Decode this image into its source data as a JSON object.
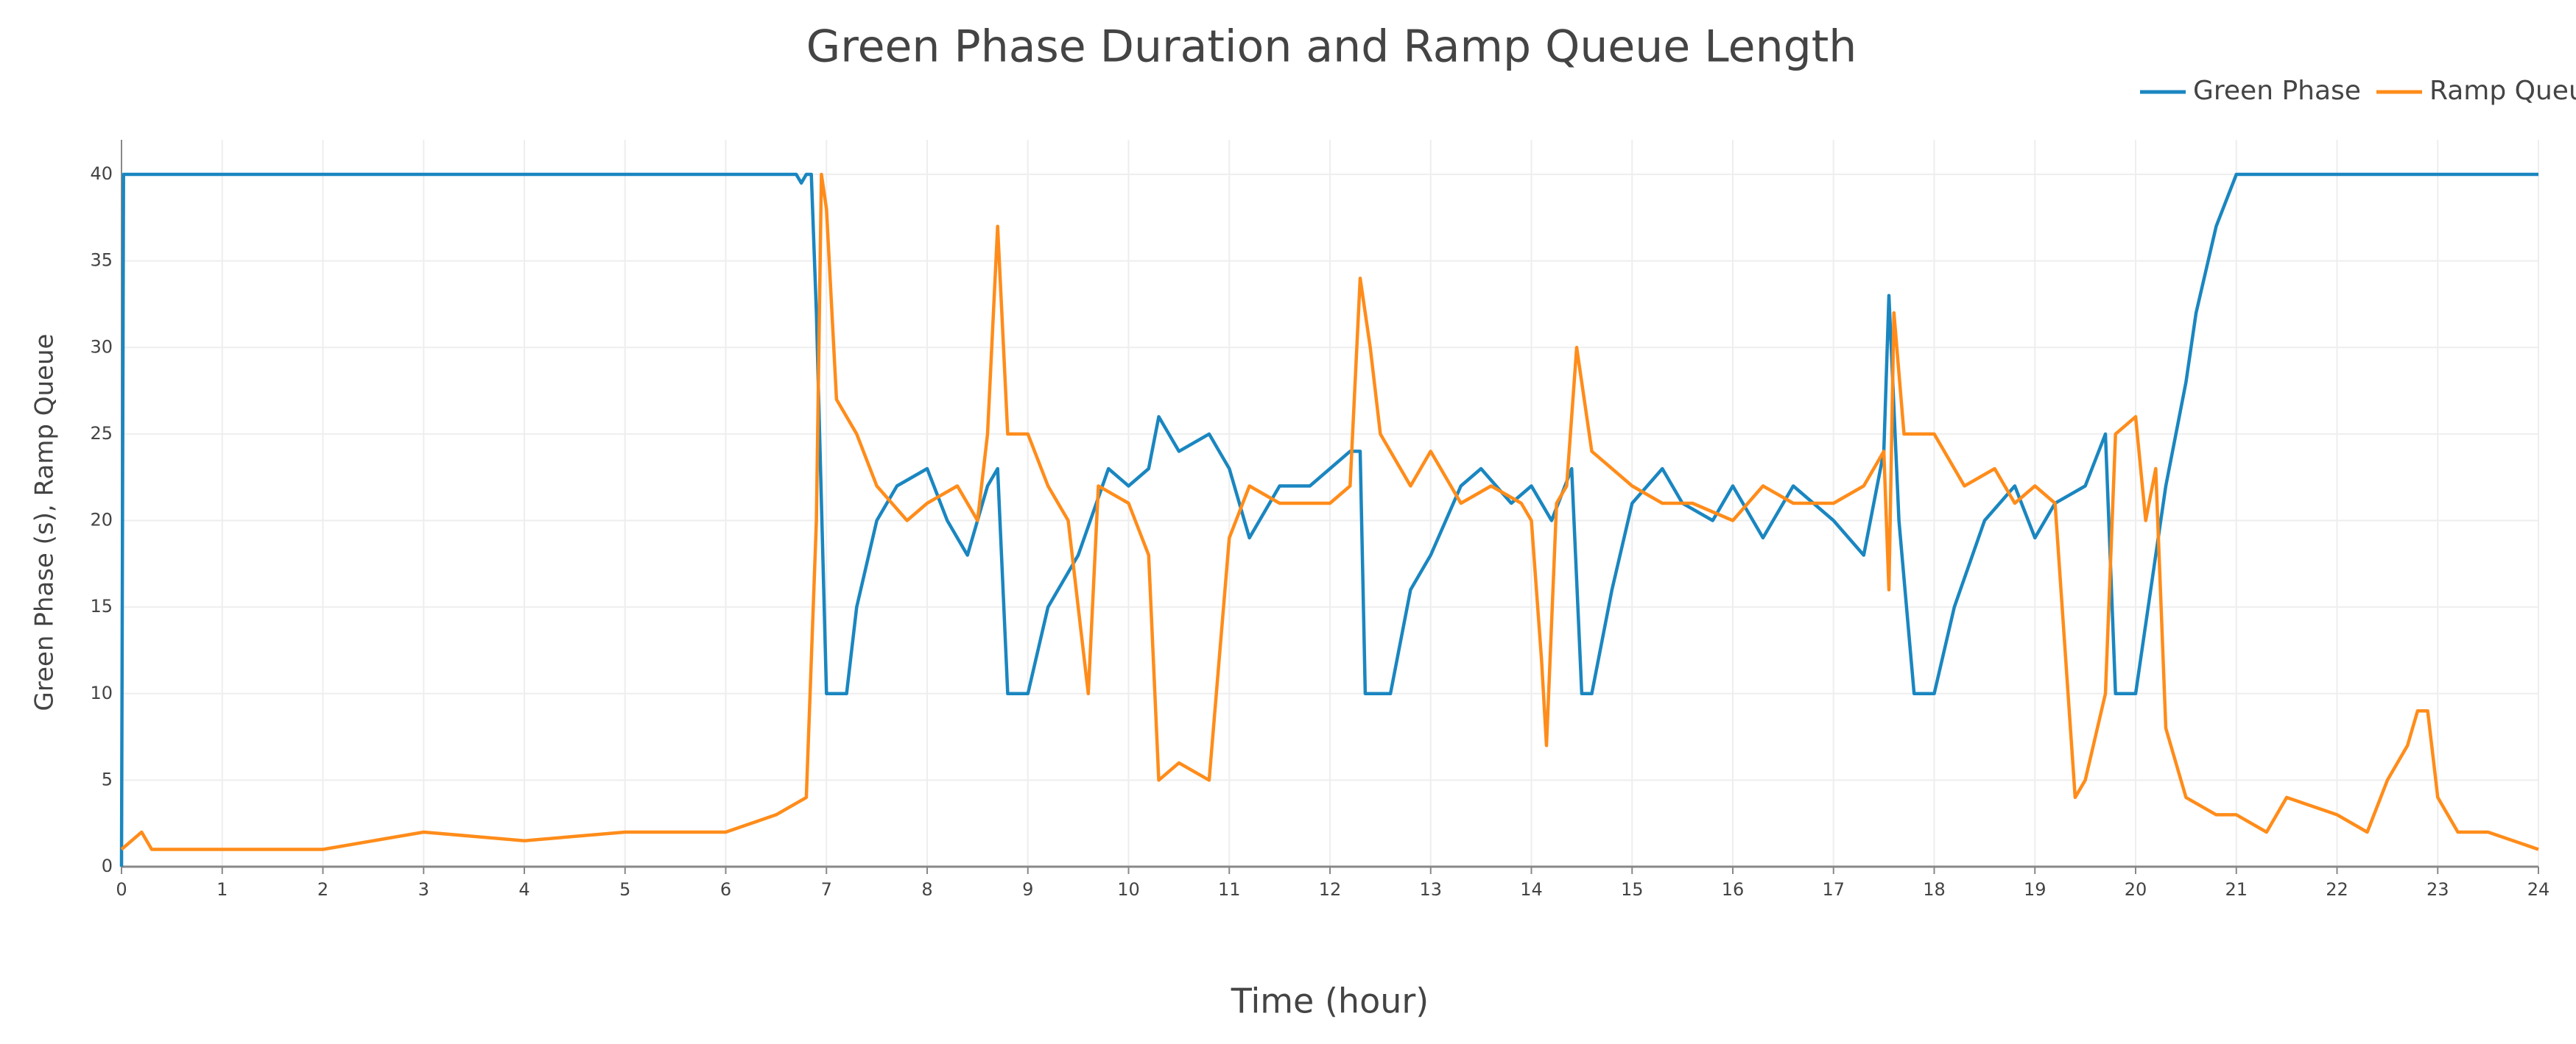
{
  "chart_data": {
    "type": "line",
    "title": "Green Phase Duration and Ramp Queue Length",
    "x_label": "Time (hour)",
    "y_label": "Green Phase (s), Ramp Queue",
    "xlim": [
      0,
      24
    ],
    "ylim": [
      0,
      42
    ],
    "xticks": [
      0,
      1,
      2,
      3,
      4,
      5,
      6,
      7,
      8,
      9,
      10,
      11,
      12,
      13,
      14,
      15,
      16,
      17,
      18,
      19,
      20,
      21,
      22,
      23,
      24
    ],
    "yticks": [
      0,
      5,
      10,
      15,
      20,
      25,
      30,
      35,
      40
    ],
    "grid": true,
    "legend": "top-right",
    "series": [
      {
        "name": "Green Phase",
        "color": "#1a86c0",
        "x": [
          0,
          0.02,
          6.7,
          6.75,
          6.8,
          6.85,
          6.9,
          7.0,
          7.2,
          7.3,
          7.5,
          7.7,
          8.0,
          8.2,
          8.4,
          8.6,
          8.7,
          8.8,
          9.0,
          9.2,
          9.5,
          9.8,
          10.0,
          10.2,
          10.3,
          10.5,
          10.8,
          11.0,
          11.2,
          11.5,
          11.8,
          12.0,
          12.2,
          12.3,
          12.35,
          12.6,
          12.8,
          13.0,
          13.3,
          13.5,
          13.8,
          14.0,
          14.2,
          14.4,
          14.5,
          14.6,
          14.8,
          15.0,
          15.3,
          15.5,
          15.8,
          16.0,
          16.3,
          16.6,
          17.0,
          17.3,
          17.5,
          17.55,
          17.65,
          17.8,
          18.0,
          18.2,
          18.5,
          18.8,
          19.0,
          19.2,
          19.5,
          19.7,
          19.8,
          20.0,
          20.2,
          20.3,
          20.5,
          20.6,
          20.8,
          21.0,
          24
        ],
        "values": [
          0,
          40,
          40,
          39.5,
          40,
          40,
          32,
          10,
          10,
          15,
          20,
          22,
          23,
          20,
          18,
          22,
          23,
          10,
          10,
          15,
          18,
          23,
          22,
          23,
          26,
          24,
          25,
          23,
          19,
          22,
          22,
          23,
          24,
          24,
          10,
          10,
          16,
          18,
          22,
          23,
          21,
          22,
          20,
          23,
          10,
          10,
          16,
          21,
          23,
          21,
          20,
          22,
          19,
          22,
          20,
          18,
          24,
          33,
          20,
          10,
          10,
          15,
          20,
          22,
          19,
          21,
          22,
          25,
          10,
          10,
          18,
          22,
          28,
          32,
          37,
          40,
          40
        ]
      },
      {
        "name": "Ramp Queue",
        "color": "#ff8c1a",
        "x": [
          0,
          0.2,
          0.3,
          1.0,
          2.0,
          3.0,
          4.0,
          5.0,
          6.0,
          6.5,
          6.8,
          6.9,
          6.95,
          7.0,
          7.1,
          7.3,
          7.5,
          7.8,
          8.0,
          8.3,
          8.5,
          8.6,
          8.7,
          8.8,
          9.0,
          9.2,
          9.4,
          9.5,
          9.6,
          9.7,
          10.0,
          10.2,
          10.3,
          10.5,
          10.8,
          10.9,
          11.0,
          11.2,
          11.5,
          11.8,
          12.0,
          12.2,
          12.3,
          12.4,
          12.5,
          12.8,
          13.0,
          13.3,
          13.6,
          13.9,
          14.0,
          14.1,
          14.15,
          14.25,
          14.35,
          14.45,
          14.6,
          15.0,
          15.3,
          15.6,
          16.0,
          16.3,
          16.6,
          17.0,
          17.3,
          17.5,
          17.55,
          17.6,
          17.7,
          18.0,
          18.3,
          18.6,
          18.8,
          19.0,
          19.2,
          19.4,
          19.5,
          19.7,
          19.8,
          20.0,
          20.1,
          20.2,
          20.3,
          20.5,
          20.8,
          21.0,
          21.3,
          21.5,
          22.0,
          22.3,
          22.5,
          22.7,
          22.8,
          22.9,
          23.0,
          23.2,
          23.5,
          24
        ],
        "values": [
          1,
          2,
          1,
          1,
          1,
          2,
          1.5,
          2,
          2,
          3,
          4,
          20,
          40,
          38,
          27,
          25,
          22,
          20,
          21,
          22,
          20,
          25,
          37,
          25,
          25,
          22,
          20,
          15,
          10,
          22,
          21,
          18,
          5,
          6,
          5,
          12,
          19,
          22,
          21,
          21,
          21,
          22,
          34,
          30,
          25,
          22,
          24,
          21,
          22,
          21,
          20,
          12,
          7,
          21,
          22,
          30,
          24,
          22,
          21,
          21,
          20,
          22,
          21,
          21,
          22,
          24,
          16,
          32,
          25,
          25,
          22,
          23,
          21,
          22,
          21,
          4,
          5,
          10,
          25,
          26,
          20,
          23,
          8,
          4,
          3,
          3,
          2,
          4,
          3,
          2,
          5,
          7,
          9,
          9,
          4,
          2,
          2,
          1
        ]
      }
    ]
  }
}
